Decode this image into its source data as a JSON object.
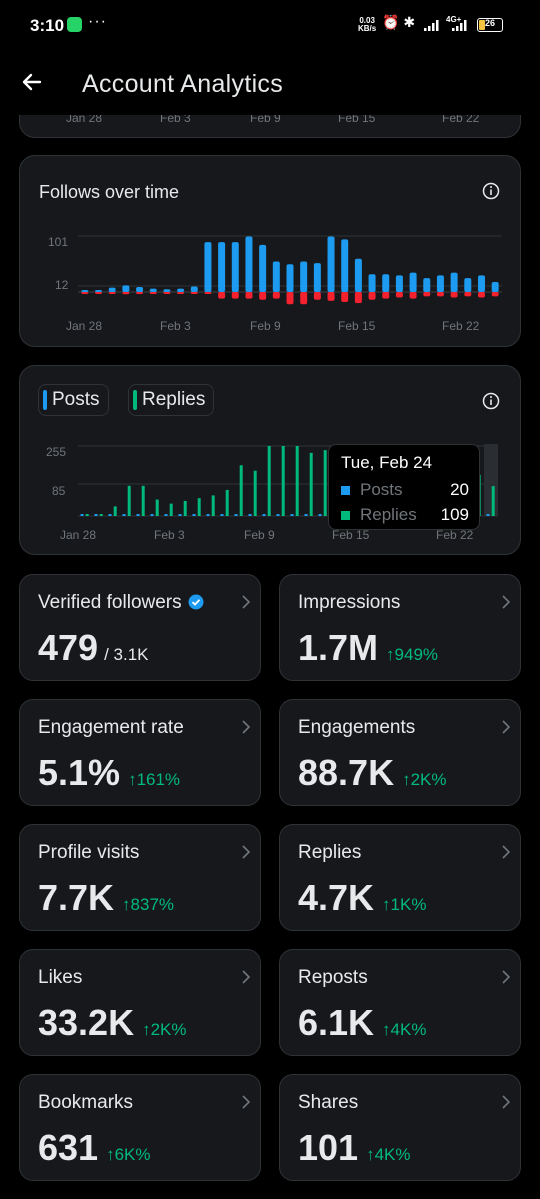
{
  "status_bar": {
    "time": "3:10",
    "dots": "···",
    "net_speed_top": "0.03",
    "net_speed_bottom": "KB/s",
    "network": "4G+",
    "battery": "26"
  },
  "header": {
    "title": "Account Analytics"
  },
  "top_partial_axis": [
    "Jan 28",
    "Feb 3",
    "Feb 9",
    "Feb 15",
    "Feb 22"
  ],
  "follows_card": {
    "title": "Follows over time",
    "y_ticks": [
      "101",
      "12"
    ],
    "x_ticks": [
      "Jan 28",
      "Feb 3",
      "Feb 9",
      "Feb 15",
      "Feb 22"
    ]
  },
  "posts_card": {
    "legend": [
      "Posts",
      "Replies"
    ],
    "y_ticks": [
      "255",
      "85"
    ],
    "x_ticks": [
      "Jan 28",
      "Feb 3",
      "Feb 9",
      "Feb 15",
      "Feb 22"
    ],
    "tooltip": {
      "date": "Tue, Feb 24",
      "rows": [
        {
          "label": "Posts",
          "value": "20"
        },
        {
          "label": "Replies",
          "value": "109"
        }
      ]
    }
  },
  "colors": {
    "blue": "#1d9bf0",
    "red": "#f4212e",
    "green": "#00ba7c",
    "card": "#16181c"
  },
  "chart_data": [
    {
      "type": "bar",
      "title": "Follows over time",
      "x_ticks": [
        "Jan 28",
        "Feb 3",
        "Feb 9",
        "Feb 15",
        "Feb 22"
      ],
      "yticks": [
        101,
        12
      ],
      "series": [
        {
          "values": [
            2,
            2,
            8,
            12,
            9,
            6,
            5,
            6,
            10,
            90,
            90,
            90,
            100,
            85,
            55,
            50,
            55,
            52,
            100,
            95,
            60,
            32,
            32,
            30,
            35,
            25,
            30,
            35,
            25,
            30,
            18
          ]
        },
        {
          "values": [
            -2,
            -3,
            -1,
            -4,
            -2,
            -1,
            -1,
            -1,
            -1,
            -1,
            -12,
            -12,
            -12,
            -14,
            -12,
            -22,
            -22,
            -14,
            -16,
            -18,
            -20,
            -14,
            -12,
            -10,
            -12,
            -8,
            -8,
            -10,
            -8,
            -10,
            -8
          ]
        }
      ]
    },
    {
      "type": "bar",
      "x_ticks": [
        "Jan 28",
        "Feb 3",
        "Feb 9",
        "Feb 15",
        "Feb 22"
      ],
      "yticks": [
        255,
        85
      ],
      "series": [
        {
          "name": "Posts",
          "values": [
            8,
            8,
            10,
            8,
            12,
            10,
            10,
            12,
            10,
            12,
            12,
            14,
            14,
            12,
            12,
            14,
            12,
            20,
            22,
            22,
            20,
            20,
            22,
            20,
            20,
            20,
            18,
            16,
            16,
            20
          ]
        },
        {
          "name": "Replies",
          "values": [
            0,
            2,
            35,
            110,
            110,
            60,
            45,
            55,
            65,
            75,
            95,
            185,
            165,
            265,
            260,
            255,
            230,
            240,
            220,
            200,
            180,
            170,
            150,
            140,
            130,
            140,
            150,
            140,
            150,
            109
          ]
        }
      ]
    }
  ],
  "stats": [
    {
      "label": "Verified followers",
      "value": "479",
      "sub": "/ 3.1K",
      "change": "",
      "verified": true
    },
    {
      "label": "Impressions",
      "value": "1.7M",
      "sub": "",
      "change": "↑949%"
    },
    {
      "label": "Engagement rate",
      "value": "5.1%",
      "sub": "",
      "change": "↑161%"
    },
    {
      "label": "Engagements",
      "value": "88.7K",
      "sub": "",
      "change": "↑2K%"
    },
    {
      "label": "Profile visits",
      "value": "7.7K",
      "sub": "",
      "change": "↑837%"
    },
    {
      "label": "Replies",
      "value": "4.7K",
      "sub": "",
      "change": "↑1K%"
    },
    {
      "label": "Likes",
      "value": "33.2K",
      "sub": "",
      "change": "↑2K%"
    },
    {
      "label": "Reposts",
      "value": "6.1K",
      "sub": "",
      "change": "↑4K%"
    },
    {
      "label": "Bookmarks",
      "value": "631",
      "sub": "",
      "change": "↑6K%"
    },
    {
      "label": "Shares",
      "value": "101",
      "sub": "",
      "change": "↑4K%"
    }
  ]
}
